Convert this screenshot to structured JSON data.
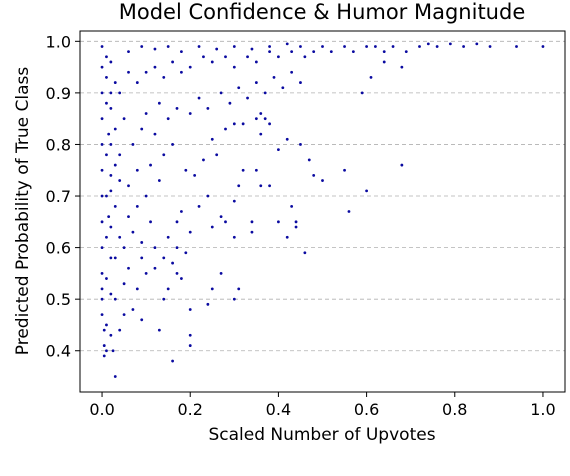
{
  "chart_data": {
    "type": "scatter",
    "title": "Model Confidence & Humor Magnitude",
    "xlabel": "Scaled Number of Upvotes",
    "ylabel": "Predicted Probability of True Class",
    "xlim": [
      -0.05,
      1.05
    ],
    "ylim": [
      0.32,
      1.02
    ],
    "xticks": [
      0.0,
      0.2,
      0.4,
      0.6,
      0.8,
      1.0
    ],
    "xtick_labels": [
      "0.0",
      "0.2",
      "0.4",
      "0.6",
      "0.8",
      "1.0"
    ],
    "yticks": [
      0.4,
      0.5,
      0.6,
      0.7,
      0.8,
      0.9,
      1.0
    ],
    "ytick_labels": [
      "0.4",
      "0.5",
      "0.6",
      "0.7",
      "0.8",
      "0.9",
      "1.0"
    ],
    "grid": "y-dashed",
    "legend": "none",
    "marker_color": "#0a0aa0",
    "points": [
      [
        0.0,
        0.99
      ],
      [
        0.0,
        0.95
      ],
      [
        0.0,
        0.9
      ],
      [
        0.0,
        0.85
      ],
      [
        0.0,
        0.8
      ],
      [
        0.0,
        0.75
      ],
      [
        0.0,
        0.7
      ],
      [
        0.0,
        0.65
      ],
      [
        0.0,
        0.6
      ],
      [
        0.0,
        0.55
      ],
      [
        0.0,
        0.52
      ],
      [
        0.0,
        0.5
      ],
      [
        0.0,
        0.47
      ],
      [
        0.005,
        0.44
      ],
      [
        0.005,
        0.41
      ],
      [
        0.005,
        0.39
      ],
      [
        0.01,
        0.4
      ],
      [
        0.01,
        0.45
      ],
      [
        0.02,
        0.43
      ],
      [
        0.025,
        0.4
      ],
      [
        0.03,
        0.35
      ],
      [
        0.04,
        0.44
      ],
      [
        0.05,
        0.47
      ],
      [
        0.03,
        0.5
      ],
      [
        0.07,
        0.48
      ],
      [
        0.09,
        0.46
      ],
      [
        0.08,
        0.52
      ],
      [
        0.1,
        0.55
      ],
      [
        0.09,
        0.58
      ],
      [
        0.12,
        0.56
      ],
      [
        0.14,
        0.5
      ],
      [
        0.15,
        0.52
      ],
      [
        0.17,
        0.55
      ],
      [
        0.16,
        0.38
      ],
      [
        0.13,
        0.44
      ],
      [
        0.2,
        0.48
      ],
      [
        0.2,
        0.43
      ],
      [
        0.2,
        0.41
      ],
      [
        0.24,
        0.49
      ],
      [
        0.25,
        0.52
      ],
      [
        0.3,
        0.5
      ],
      [
        0.31,
        0.52
      ],
      [
        0.27,
        0.55
      ],
      [
        0.17,
        0.6
      ],
      [
        0.15,
        0.62
      ],
      [
        0.17,
        0.65
      ],
      [
        0.18,
        0.67
      ],
      [
        0.2,
        0.63
      ],
      [
        0.22,
        0.68
      ],
      [
        0.24,
        0.7
      ],
      [
        0.25,
        0.64
      ],
      [
        0.27,
        0.66
      ],
      [
        0.28,
        0.65
      ],
      [
        0.3,
        0.69
      ],
      [
        0.3,
        0.62
      ],
      [
        0.31,
        0.72
      ],
      [
        0.32,
        0.75
      ],
      [
        0.34,
        0.65
      ],
      [
        0.34,
        0.63
      ],
      [
        0.35,
        0.75
      ],
      [
        0.36,
        0.72
      ],
      [
        0.38,
        0.72
      ],
      [
        0.4,
        0.65
      ],
      [
        0.42,
        0.62
      ],
      [
        0.43,
        0.68
      ],
      [
        0.44,
        0.65
      ],
      [
        0.44,
        0.64
      ],
      [
        0.46,
        0.59
      ],
      [
        0.47,
        0.77
      ],
      [
        0.48,
        0.74
      ],
      [
        0.45,
        0.8
      ],
      [
        0.42,
        0.81
      ],
      [
        0.4,
        0.79
      ],
      [
        0.38,
        0.84
      ],
      [
        0.36,
        0.82
      ],
      [
        0.35,
        0.85
      ],
      [
        0.37,
        0.85
      ],
      [
        0.36,
        0.86
      ],
      [
        0.32,
        0.84
      ],
      [
        0.3,
        0.84
      ],
      [
        0.28,
        0.83
      ],
      [
        0.26,
        0.78
      ],
      [
        0.25,
        0.81
      ],
      [
        0.23,
        0.77
      ],
      [
        0.21,
        0.74
      ],
      [
        0.19,
        0.75
      ],
      [
        0.16,
        0.8
      ],
      [
        0.14,
        0.78
      ],
      [
        0.12,
        0.82
      ],
      [
        0.11,
        0.76
      ],
      [
        0.13,
        0.73
      ],
      [
        0.1,
        0.7
      ],
      [
        0.08,
        0.68
      ],
      [
        0.06,
        0.66
      ],
      [
        0.07,
        0.63
      ],
      [
        0.05,
        0.6
      ],
      [
        0.04,
        0.62
      ],
      [
        0.03,
        0.58
      ],
      [
        0.06,
        0.56
      ],
      [
        0.05,
        0.53
      ],
      [
        0.09,
        0.61
      ],
      [
        0.11,
        0.65
      ],
      [
        0.12,
        0.6
      ],
      [
        0.14,
        0.58
      ],
      [
        0.16,
        0.57
      ],
      [
        0.18,
        0.54
      ],
      [
        0.19,
        0.59
      ],
      [
        0.06,
        0.72
      ],
      [
        0.08,
        0.75
      ],
      [
        0.04,
        0.78
      ],
      [
        0.07,
        0.8
      ],
      [
        0.09,
        0.83
      ],
      [
        0.05,
        0.85
      ],
      [
        0.1,
        0.86
      ],
      [
        0.13,
        0.88
      ],
      [
        0.15,
        0.85
      ],
      [
        0.17,
        0.87
      ],
      [
        0.2,
        0.86
      ],
      [
        0.22,
        0.89
      ],
      [
        0.24,
        0.87
      ],
      [
        0.27,
        0.9
      ],
      [
        0.29,
        0.88
      ],
      [
        0.31,
        0.91
      ],
      [
        0.33,
        0.89
      ],
      [
        0.35,
        0.92
      ],
      [
        0.37,
        0.9
      ],
      [
        0.39,
        0.93
      ],
      [
        0.41,
        0.91
      ],
      [
        0.43,
        0.94
      ],
      [
        0.45,
        0.92
      ],
      [
        0.5,
        0.73
      ],
      [
        0.55,
        0.75
      ],
      [
        0.56,
        0.67
      ],
      [
        0.6,
        0.71
      ],
      [
        0.59,
        0.9
      ],
      [
        0.61,
        0.93
      ],
      [
        0.64,
        0.96
      ],
      [
        0.68,
        0.76
      ],
      [
        0.68,
        0.95
      ],
      [
        0.02,
        0.64
      ],
      [
        0.03,
        0.68
      ],
      [
        0.02,
        0.71
      ],
      [
        0.04,
        0.73
      ],
      [
        0.03,
        0.76
      ],
      [
        0.02,
        0.8
      ],
      [
        0.03,
        0.83
      ],
      [
        0.02,
        0.87
      ],
      [
        0.04,
        0.9
      ],
      [
        0.03,
        0.92
      ],
      [
        0.06,
        0.94
      ],
      [
        0.08,
        0.92
      ],
      [
        0.1,
        0.94
      ],
      [
        0.12,
        0.95
      ],
      [
        0.14,
        0.93
      ],
      [
        0.16,
        0.96
      ],
      [
        0.18,
        0.94
      ],
      [
        0.2,
        0.95
      ],
      [
        0.23,
        0.97
      ],
      [
        0.25,
        0.96
      ],
      [
        0.28,
        0.97
      ],
      [
        0.3,
        0.95
      ],
      [
        0.33,
        0.97
      ],
      [
        0.35,
        0.96
      ],
      [
        0.38,
        0.98
      ],
      [
        0.4,
        0.97
      ],
      [
        0.43,
        0.98
      ],
      [
        0.46,
        0.97
      ],
      [
        0.48,
        0.98
      ],
      [
        0.5,
        0.99
      ],
      [
        0.52,
        0.98
      ],
      [
        0.55,
        0.99
      ],
      [
        0.57,
        0.98
      ],
      [
        0.6,
        0.99
      ],
      [
        0.62,
        0.99
      ],
      [
        0.64,
        0.98
      ],
      [
        0.66,
        0.99
      ],
      [
        0.69,
        0.98
      ],
      [
        0.72,
        0.99
      ],
      [
        0.74,
        0.995
      ],
      [
        0.76,
        0.99
      ],
      [
        0.79,
        0.995
      ],
      [
        0.82,
        0.99
      ],
      [
        0.85,
        0.995
      ],
      [
        0.88,
        0.99
      ],
      [
        0.94,
        0.99
      ],
      [
        1.0,
        0.99
      ],
      [
        0.06,
        0.98
      ],
      [
        0.09,
        0.99
      ],
      [
        0.12,
        0.985
      ],
      [
        0.15,
        0.99
      ],
      [
        0.18,
        0.98
      ],
      [
        0.22,
        0.99
      ],
      [
        0.26,
        0.985
      ],
      [
        0.3,
        0.99
      ],
      [
        0.34,
        0.985
      ],
      [
        0.38,
        0.99
      ],
      [
        0.42,
        0.995
      ],
      [
        0.45,
        0.99
      ],
      [
        0.01,
        0.97
      ],
      [
        0.02,
        0.96
      ],
      [
        0.01,
        0.93
      ],
      [
        0.02,
        0.9
      ],
      [
        0.01,
        0.88
      ],
      [
        0.015,
        0.82
      ],
      [
        0.01,
        0.78
      ],
      [
        0.02,
        0.74
      ],
      [
        0.01,
        0.7
      ],
      [
        0.015,
        0.66
      ],
      [
        0.01,
        0.62
      ],
      [
        0.02,
        0.58
      ],
      [
        0.01,
        0.54
      ],
      [
        0.02,
        0.51
      ]
    ]
  }
}
